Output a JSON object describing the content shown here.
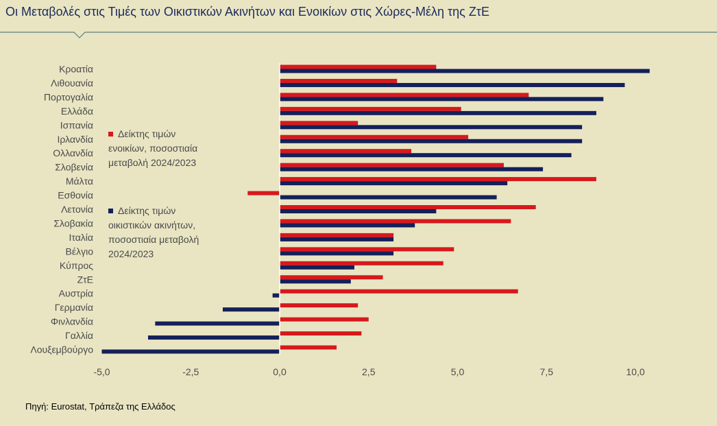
{
  "title": "Οι Μεταβολές στις Τιμές των Οικιστικών Ακινήτων και Ενοικίων στις Χώρες-Μέλη της ΖτΕ",
  "source": "Πηγή: Eurostat, Τράπεζα της Ελλάδος",
  "colors": {
    "rent": "#d7191c",
    "property": "#14205a",
    "background": "#e9e5c3",
    "rule": "#5e7f7a"
  },
  "chart_data": {
    "type": "bar",
    "orientation": "horizontal",
    "categories": [
      "Κροατία",
      "Λιθουανία",
      "Πορτογαλία",
      "Ελλάδα",
      "Ισπανία",
      "Ιρλανδία",
      "Ολλανδία",
      "Σλοβενία",
      "Μάλτα",
      "Εσθονία",
      "Λετονία",
      "Σλοβακία",
      "Ιταλία",
      "Βέλγιο",
      "Κύπρος",
      "ΖτΕ",
      "Αυστρία",
      "Γερμανία",
      "Φινλανδία",
      "Γαλλία",
      "Λουξεμβούργο"
    ],
    "series": [
      {
        "name": "Δείκτης τιμών ενοικίων, ποσοστιαία μεταβολή 2024/2023",
        "legend_lines": [
          "Δείκτης τιμών",
          "ενοικίων, ποσοστιαία",
          "μεταβολή 2024/2023"
        ],
        "color": "#d7191c",
        "values": [
          4.4,
          3.3,
          7.0,
          5.1,
          2.2,
          5.3,
          3.7,
          6.3,
          8.9,
          -0.9,
          7.2,
          6.5,
          3.2,
          4.9,
          4.6,
          2.9,
          6.7,
          2.2,
          2.5,
          2.3,
          1.6
        ]
      },
      {
        "name": "Δείκτης τιμών οικιστικών ακινήτων, ποσοστιαία μεταβολή 2024/2023",
        "legend_lines": [
          "Δείκτης τιμών",
          "οικιστικών ακινήτων,",
          "ποσοστιαία μεταβολή",
          "2024/2023"
        ],
        "color": "#14205a",
        "values": [
          10.4,
          9.7,
          9.1,
          8.9,
          8.5,
          8.5,
          8.2,
          7.4,
          6.4,
          6.1,
          4.4,
          3.8,
          3.2,
          3.2,
          2.1,
          2.0,
          -0.2,
          -1.6,
          -3.5,
          -3.7,
          -5.0
        ]
      }
    ],
    "xticks": [
      "-5,0",
      "-2,5",
      "0,0",
      "2,5",
      "5,0",
      "7,5",
      "10,0"
    ],
    "xtick_values": [
      -5,
      -2.5,
      0,
      2.5,
      5,
      7.5,
      10
    ],
    "xlim": [
      -5,
      10.5
    ],
    "grid": false,
    "legend_placement": "center-left"
  }
}
